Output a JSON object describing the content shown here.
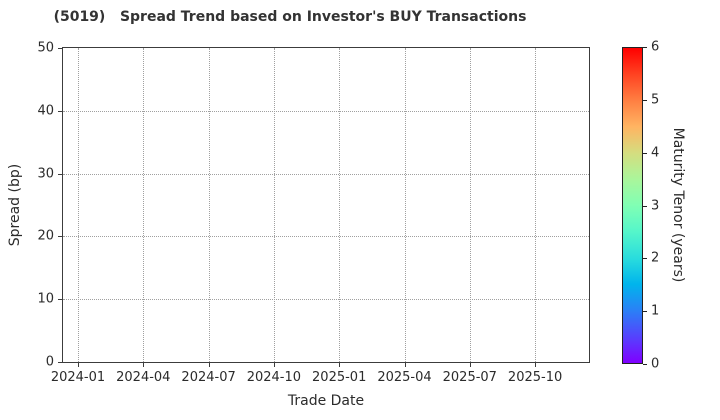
{
  "chart_data": {
    "type": "scatter",
    "title": "(5019)   Spread Trend based on Investor's BUY Transactions",
    "xlabel": "Trade Date",
    "ylabel": "Spread (bp)",
    "x_tick_labels": [
      "2024-01",
      "2024-04",
      "2024-07",
      "2024-10",
      "2025-01",
      "2025-04",
      "2025-07",
      "2025-10"
    ],
    "y_ticks": [
      0,
      10,
      20,
      30,
      40,
      50
    ],
    "ylim": [
      0,
      50
    ],
    "grid": true,
    "grid_style": "dotted",
    "legend_position": "none",
    "series": [],
    "points": [],
    "colorbar": {
      "label": "Maturity Tenor (years)",
      "ticks": [
        0,
        1,
        2,
        3,
        4,
        5,
        6
      ],
      "lim": [
        0,
        6
      ],
      "colormap": "rainbow",
      "gradient_stops": [
        {
          "pos": 0.0,
          "color": "#8000ff"
        },
        {
          "pos": 0.083,
          "color": "#5542fd"
        },
        {
          "pos": 0.167,
          "color": "#2a80f6"
        },
        {
          "pos": 0.25,
          "color": "#00b4ec"
        },
        {
          "pos": 0.333,
          "color": "#2adddd"
        },
        {
          "pos": 0.417,
          "color": "#55f6ca"
        },
        {
          "pos": 0.5,
          "color": "#80ffb4"
        },
        {
          "pos": 0.583,
          "color": "#aaf69b"
        },
        {
          "pos": 0.667,
          "color": "#d5dd7f"
        },
        {
          "pos": 0.75,
          "color": "#ffb462"
        },
        {
          "pos": 0.833,
          "color": "#ff7f42"
        },
        {
          "pos": 0.917,
          "color": "#ff4221"
        },
        {
          "pos": 1.0,
          "color": "#ff0000"
        }
      ]
    },
    "style": {
      "background": "#ffffff",
      "text_color": "#2b2b2b",
      "grid_color": "#a0a0a0",
      "axis_color": "#3c3c3c"
    }
  }
}
